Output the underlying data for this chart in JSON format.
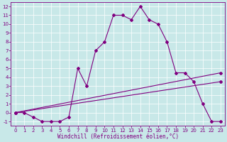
{
  "line1_x": [
    0,
    1,
    2,
    3,
    4,
    5,
    6,
    7,
    8,
    9,
    10,
    11,
    12,
    13,
    14,
    15,
    16,
    17,
    18,
    19,
    20,
    21,
    22,
    23
  ],
  "line1_y": [
    0,
    0,
    -0.5,
    -1,
    -1,
    -1,
    -0.5,
    5,
    3,
    7,
    8,
    11,
    11,
    10.5,
    12,
    10.5,
    10,
    8,
    4.5,
    4.5,
    3.5,
    1,
    -1,
    -1
  ],
  "line2_x": [
    0,
    23
  ],
  "line2_y": [
    0,
    4.5
  ],
  "line3_x": [
    0,
    23
  ],
  "line3_y": [
    0,
    3.5
  ],
  "color": "#800080",
  "bg_color": "#c8e8e8",
  "xlabel": "Windchill (Refroidissement éolien,°C)",
  "ylim": [
    -1.5,
    12.5
  ],
  "xlim": [
    -0.5,
    23.5
  ],
  "yticks": [
    -1,
    0,
    1,
    2,
    3,
    4,
    5,
    6,
    7,
    8,
    9,
    10,
    11,
    12
  ],
  "xticks": [
    0,
    1,
    2,
    3,
    4,
    5,
    6,
    7,
    8,
    9,
    10,
    11,
    12,
    13,
    14,
    15,
    16,
    17,
    18,
    19,
    20,
    21,
    22,
    23
  ],
  "marker": "D",
  "markersize": 2.0,
  "linewidth": 0.8,
  "grid_color": "#aacccc",
  "tick_fontsize": 5.0,
  "xlabel_fontsize": 5.5
}
